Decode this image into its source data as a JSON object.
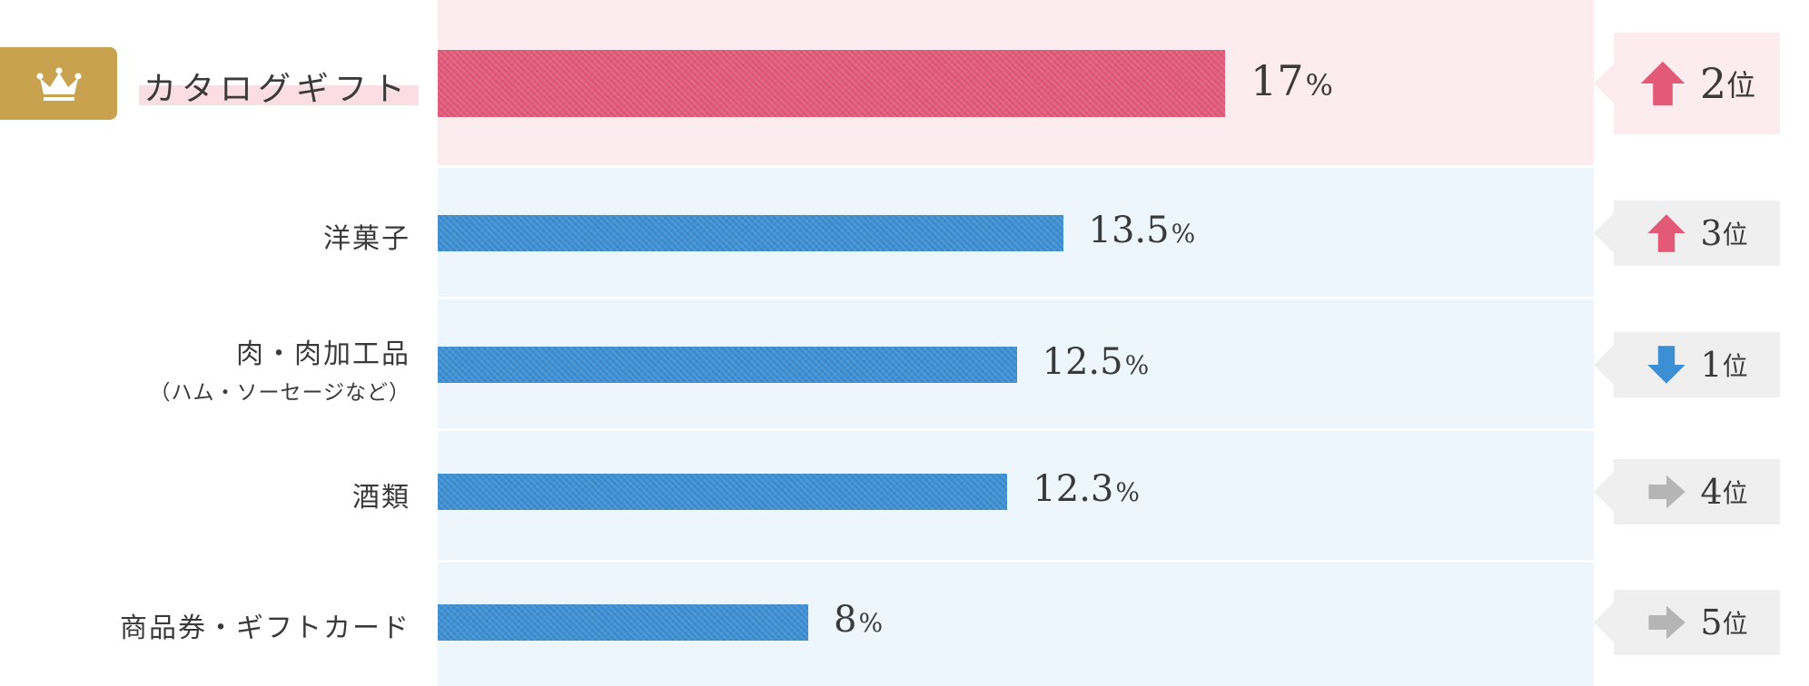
{
  "chart_data": {
    "type": "bar",
    "orientation": "horizontal",
    "categories": [
      "カタログギフト",
      "洋菓子",
      "肉・肉加工品",
      "酒類",
      "商品券・ギフトカード"
    ],
    "category_notes": [
      "",
      "",
      "（ハム・ソーセージなど）",
      "",
      ""
    ],
    "values": [
      17,
      13.5,
      12.5,
      12.3,
      8
    ],
    "value_labels": [
      "17",
      "13.5",
      "12.5",
      "12.3",
      "8"
    ],
    "value_suffix": "%",
    "ranks": [
      {
        "value": "2",
        "suffix": "位",
        "trend": "up"
      },
      {
        "value": "3",
        "suffix": "位",
        "trend": "up"
      },
      {
        "value": "1",
        "suffix": "位",
        "trend": "down"
      },
      {
        "value": "4",
        "suffix": "位",
        "trend": "same"
      },
      {
        "value": "5",
        "suffix": "位",
        "trend": "same"
      }
    ],
    "highlight_index": 0,
    "xlim": [
      0,
      25
    ],
    "grid": false,
    "legend": "none"
  },
  "colors": {
    "highlight_bar": "#e35a79",
    "bar": "#3d8fd3",
    "highlight_row_bg": "#fdecef",
    "row_bg": "#ecf6fc",
    "rank_bg": "#efefef",
    "up_arrow": "#e35a79",
    "down_arrow": "#3d8fd3",
    "same_arrow": "#b5b5b5",
    "crown_badge": "#c9a24f"
  },
  "icons": {
    "badge": "crown-icon",
    "up": "arrow-up-icon",
    "down": "arrow-down-icon",
    "same": "arrow-right-icon"
  }
}
